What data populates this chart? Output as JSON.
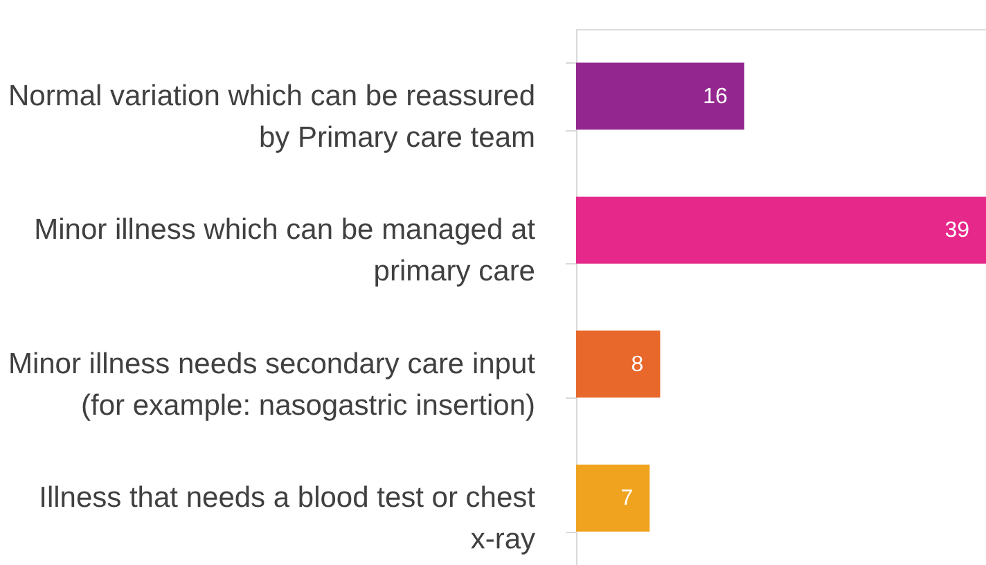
{
  "chart_data": {
    "type": "bar",
    "orientation": "horizontal",
    "categories": [
      "Normal variation which can be reassured by Primary care team",
      "Minor illness which can be managed at primary care",
      "Minor illness needs secondary care input (for example: nasogastric insertion)",
      "Illness that needs a blood test or chest x-ray"
    ],
    "values": [
      16,
      39,
      8,
      7
    ],
    "colors": [
      "#93278f",
      "#e5288a",
      "#e8672a",
      "#f0a31f"
    ],
    "data_labels": true
  }
}
